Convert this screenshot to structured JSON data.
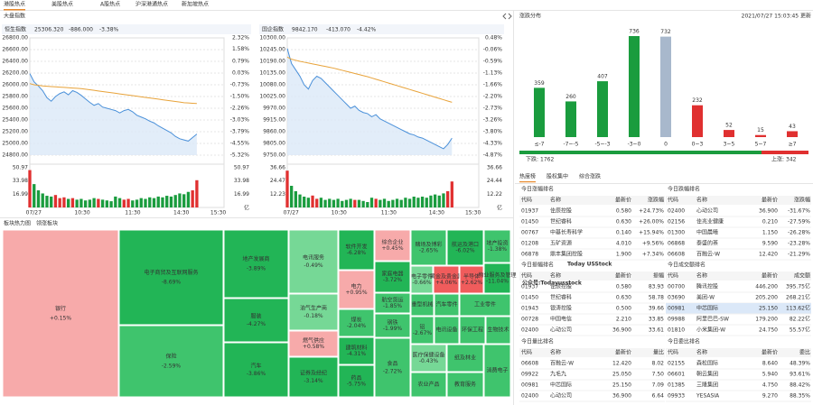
{
  "tabs": [
    "港股热点",
    "美股热点",
    "A股热点",
    "沪深港通热点",
    "新加坡热点"
  ],
  "active_tab": 0,
  "market": {
    "title": "大盘指数",
    "xlabels": [
      "07/27",
      "10:30",
      "11:30",
      "14:30",
      "15:30"
    ],
    "charts": [
      {
        "type": "line",
        "name": "恒生指数",
        "value": "25306.320",
        "change": "-886.000",
        "pct": "-3.38%",
        "line_color": "#4a90d9",
        "avg_color": "#e8a33a",
        "ylim": [
          24800,
          26800
        ],
        "yticks": [
          {
            "value": 26800,
            "label": "26800.00"
          },
          {
            "value": 26600,
            "label": "26600.00"
          },
          {
            "value": 26400,
            "label": "26400.00"
          },
          {
            "value": 26200,
            "label": "26200.00"
          },
          {
            "value": 26000,
            "label": "26000.00"
          },
          {
            "value": 25800,
            "label": "25800.00"
          },
          {
            "value": 25600,
            "label": "25600.00"
          },
          {
            "value": 25400,
            "label": "25400.00"
          },
          {
            "value": 25200,
            "label": "25200.00"
          },
          {
            "value": 25000,
            "label": "25000.00"
          },
          {
            "value": 24800,
            "label": "24800.00"
          }
        ],
        "y2lim": [
          -5.32,
          2.32
        ],
        "y2ticks": [
          {
            "value": 2.32,
            "label": "2.32%"
          },
          {
            "value": 1.58,
            "label": "1.58%"
          },
          {
            "value": 0.79,
            "label": "0.79%"
          },
          {
            "value": 0.03,
            "label": "0.03%"
          },
          {
            "value": -0.73,
            "label": "-0.73%"
          },
          {
            "value": -1.5,
            "label": "-1.50%"
          },
          {
            "value": -2.26,
            "label": "-2.26%"
          },
          {
            "value": -3.03,
            "label": "-3.03%"
          },
          {
            "value": -3.79,
            "label": "-3.79%"
          },
          {
            "value": -4.55,
            "label": "-4.55%"
          },
          {
            "value": -5.32,
            "label": "-5.32%"
          }
        ],
        "values": [
          26190,
          26050,
          25980,
          25900,
          25780,
          25720,
          25800,
          25850,
          25880,
          25830,
          25900,
          25870,
          25820,
          25760,
          25700,
          25650,
          25680,
          25620,
          25600,
          25580,
          25560,
          25520,
          25560,
          25580,
          25540,
          25480,
          25450,
          25420,
          25380,
          25350,
          25300,
          25260,
          25220,
          25180,
          25120,
          25080,
          25060,
          25040,
          25100,
          25160
        ],
        "avg": [
          26020,
          26000,
          25990,
          25980,
          25975,
          25970,
          25965,
          25960,
          25955,
          25950,
          25945,
          25940,
          25935,
          25925,
          25915,
          25905,
          25895,
          25885,
          25875,
          25865,
          25855,
          25845,
          25835,
          25825,
          25815,
          25805,
          25795,
          25785,
          25775,
          25765,
          25755,
          25745,
          25735,
          25725,
          25715,
          25705,
          25695,
          25690,
          25685,
          25680
        ],
        "volume": {
          "ylim": [
            0,
            50.97
          ],
          "yticks": [
            50.97,
            33.98,
            16.99
          ],
          "y2ticks": [
            50.97,
            33.98,
            16.99
          ],
          "unit": "亿",
          "values": [
            48,
            30,
            22,
            18,
            15,
            14,
            16,
            12,
            13,
            11,
            12,
            10,
            11,
            9,
            10,
            12,
            11,
            10,
            9,
            8,
            14,
            12,
            10,
            11,
            9,
            10,
            12,
            11,
            13,
            12,
            14,
            13,
            15,
            14,
            16,
            18,
            17,
            20,
            22,
            35
          ]
        }
      },
      {
        "type": "line",
        "name": "国企指数",
        "value": "9842.170",
        "change": "-413.070",
        "pct": "-4.42%",
        "line_color": "#4a90d9",
        "avg_color": "#e8a33a",
        "ylim": [
          9750,
          10300
        ],
        "yticks": [
          {
            "value": 10300,
            "label": "10300.00"
          },
          {
            "value": 10245,
            "label": "10245.00"
          },
          {
            "value": 10190,
            "label": "10190.00"
          },
          {
            "value": 10135,
            "label": "10135.00"
          },
          {
            "value": 10080,
            "label": "10080.00"
          },
          {
            "value": 10025,
            "label": "10025.00"
          },
          {
            "value": 9970,
            "label": "9970.00"
          },
          {
            "value": 9915,
            "label": "9915.00"
          },
          {
            "value": 9860,
            "label": "9860.00"
          },
          {
            "value": 9805,
            "label": "9805.00"
          },
          {
            "value": 9750,
            "label": "9750.00"
          }
        ],
        "y2lim": [
          -4.87,
          0.48
        ],
        "y2ticks": [
          {
            "value": 0.48,
            "label": "0.48%"
          },
          {
            "value": -0.06,
            "label": "-0.06%"
          },
          {
            "value": -0.59,
            "label": "-0.59%"
          },
          {
            "value": -1.13,
            "label": "-1.13%"
          },
          {
            "value": -1.66,
            "label": "-1.66%"
          },
          {
            "value": -2.2,
            "label": "-2.20%"
          },
          {
            "value": -2.73,
            "label": "-2.73%"
          },
          {
            "value": -3.26,
            "label": "-3.26%"
          },
          {
            "value": -3.8,
            "label": "-3.80%"
          },
          {
            "value": -4.33,
            "label": "-4.33%"
          },
          {
            "value": -4.87,
            "label": "-4.87%"
          }
        ],
        "values": [
          10250,
          10180,
          10150,
          10120,
          10080,
          10060,
          10100,
          10120,
          10110,
          10090,
          10070,
          10050,
          10030,
          10010,
          9990,
          9970,
          9980,
          9960,
          9950,
          9945,
          9930,
          9940,
          9920,
          9910,
          9900,
          9890,
          9880,
          9870,
          9860,
          9850,
          9845,
          9835,
          9830,
          9820,
          9810,
          9800,
          9790,
          9780,
          9800,
          9830
        ],
        "avg": [
          10210,
          10200,
          10195,
          10190,
          10186,
          10182,
          10178,
          10174,
          10170,
          10166,
          10162,
          10158,
          10153,
          10148,
          10143,
          10138,
          10133,
          10128,
          10123,
          10118,
          10112,
          10106,
          10100,
          10094,
          10088,
          10082,
          10076,
          10070,
          10064,
          10058,
          10052,
          10046,
          10040,
          10034,
          10028,
          10022,
          10016,
          10010,
          10004,
          9998
        ],
        "volume": {
          "ylim": [
            0,
            36.66
          ],
          "yticks": [
            36.66,
            24.47,
            12.23
          ],
          "y2ticks": [
            36.66,
            24.44,
            12.22
          ],
          "unit": "亿",
          "values": [
            34,
            20,
            15,
            12,
            10,
            9,
            11,
            8,
            9,
            7,
            8,
            7,
            8,
            6,
            7,
            8,
            7,
            7,
            6,
            5,
            9,
            8,
            7,
            8,
            6,
            7,
            8,
            7,
            9,
            8,
            10,
            9,
            10,
            9,
            11,
            12,
            11,
            13,
            15,
            24
          ]
        }
      }
    ]
  },
  "heatmap": {
    "title": "板块热力图",
    "tab": "领涨板块",
    "cells": [
      {
        "name": "银行",
        "value": 0.15,
        "label": "+0.15%"
      },
      {
        "name": "电子商贸及互联网服务",
        "value": -8.69,
        "label": "-8.69%"
      },
      {
        "name": "保险",
        "value": -2.59,
        "label": "-2.59%"
      },
      {
        "name": "地产发展商",
        "value": -3.89,
        "label": "-3.89%"
      },
      {
        "name": "服装",
        "value": -4.27,
        "label": "-4.27%"
      },
      {
        "name": "汽车",
        "value": -3.86,
        "label": "-3.86%"
      },
      {
        "name": "电讯服务",
        "value": -0.49,
        "label": "-0.49%"
      },
      {
        "name": "油气生产商",
        "value": -0.18,
        "label": "-0.18%"
      },
      {
        "name": "燃气供应",
        "value": 0.58,
        "label": "+0.58%"
      },
      {
        "name": "证券及经纪",
        "value": -3.14,
        "label": "-3.14%"
      },
      {
        "name": "软件开发",
        "value": -6.28,
        "label": "-6.28%"
      },
      {
        "name": "电力",
        "value": 0.95,
        "label": "+0.95%"
      },
      {
        "name": "煤炭",
        "value": -2.04,
        "label": "-2.04%"
      },
      {
        "name": "建筑材料",
        "value": -4.31,
        "label": "-4.31%"
      },
      {
        "name": "药品",
        "value": -5.75,
        "label": "-5.75%"
      },
      {
        "name": "综合企业",
        "value": 0.45,
        "label": "+0.45%"
      },
      {
        "name": "家庭电器",
        "value": -3.72,
        "label": "-3.72%"
      },
      {
        "name": "航空货运",
        "value": -1.85,
        "label": "-1.85%"
      },
      {
        "name": "钢铁",
        "value": -1.99,
        "label": "-1.99%"
      },
      {
        "name": "食品",
        "value": -2.72,
        "label": "-2.72%"
      },
      {
        "name": "赌场及博彩",
        "value": -2.65,
        "label": "-2.65%"
      },
      {
        "name": "电子零件",
        "value": -0.66,
        "label": "-0.66%"
      },
      {
        "name": "黄金及贵金属",
        "value": 4.06,
        "label": "+4.06%"
      },
      {
        "name": "半导体",
        "value": 2.62,
        "label": "+2.62%"
      },
      {
        "name": "航运及港口",
        "value": -6.02,
        "label": "-6.02%"
      },
      {
        "name": "地产投资",
        "value": -1.38,
        "label": "-1.38%"
      },
      {
        "name": "物业服务及管理",
        "value": -11.04,
        "label": "-11.04%"
      },
      {
        "name": "重型机械"
      },
      {
        "name": "汽车零件"
      },
      {
        "name": "工业零件"
      },
      {
        "name": "铝",
        "value": -2.67,
        "label": "-2.67%"
      },
      {
        "name": "医疗保健设备",
        "value": -0.43,
        "label": "-0.43%"
      },
      {
        "name": "农业产品"
      },
      {
        "name": "电讯设备"
      },
      {
        "name": "环保工程"
      },
      {
        "name": "生物技术"
      },
      {
        "name": "纸及林业"
      },
      {
        "name": "教育服务"
      },
      {
        "name": "消费电子"
      }
    ]
  },
  "distribution": {
    "title": "涨跌分布",
    "updated": "2021/07/27 15:03:45 更新",
    "type": "bar",
    "categories": [
      "≤-7",
      "-7~-5",
      "-5~-3",
      "-3~0",
      "0",
      "0~3",
      "3~5",
      "5~7",
      "≥7"
    ],
    "values": [
      359,
      260,
      407,
      736,
      732,
      232,
      52,
      15,
      43
    ],
    "colors": [
      "#1a9c3e",
      "#1a9c3e",
      "#1a9c3e",
      "#1a9c3e",
      "#a8b8cc",
      "#e03030",
      "#e03030",
      "#e03030",
      "#e03030"
    ],
    "down_label": "下跌:",
    "down": 1762,
    "down_color": "#1a9c3e",
    "up_label": "上涨:",
    "up": 342,
    "up_color": "#e03030"
  },
  "rank_tabs": [
    "热度榜",
    "股权集中",
    "综合涨跌"
  ],
  "rank_active": 0,
  "watermark": [
    "Today USStock",
    "公众号:Todayusstock"
  ],
  "tables": [
    {
      "title": "今日涨幅排名",
      "columns": [
        "代码",
        "名称",
        "最新价",
        "涨跌幅"
      ],
      "rows": [
        [
          "01937",
          "佳辰控股",
          "0.580",
          "+24.73%"
        ],
        [
          "01450",
          "世纪睿科",
          "0.630",
          "+26.00%"
        ],
        [
          "00767",
          "中基长寿科学",
          "0.140",
          "+15.94%"
        ],
        [
          "01208",
          "五矿资源",
          "4.010",
          "+9.56%"
        ],
        [
          "06878",
          "鼎丰集团控股",
          "1.900",
          "+7.34%"
        ]
      ]
    },
    {
      "title": "今日跌幅排名",
      "columns": [
        "代码",
        "名称",
        "最新价",
        "涨跌幅"
      ],
      "rows": [
        [
          "02400",
          "心动公司",
          "36.900",
          "-31.67%"
        ],
        [
          "02156",
          "佳兆业健康",
          "0.210",
          "-27.59%"
        ],
        [
          "01300",
          "中国晨曦",
          "1.150",
          "-26.28%"
        ],
        [
          "06868",
          "泰盛的茶",
          "9.590",
          "-23.28%"
        ],
        [
          "06608",
          "百融云-W",
          "12.420",
          "-21.29%"
        ]
      ]
    },
    {
      "title": "今日振幅排名",
      "columns": [
        "代码",
        "名称",
        "最新价",
        "振幅"
      ],
      "rows": [
        [
          "01937",
          "佳辰控股",
          "0.580",
          "83.93"
        ],
        [
          "01450",
          "世纪睿科",
          "0.630",
          "58.78"
        ],
        [
          "01943",
          "银涛控股",
          "0.500",
          "39.66"
        ],
        [
          "00728",
          "中国电信",
          "2.210",
          "33.85"
        ],
        [
          "02400",
          "心动公司",
          "36.900",
          "33.61"
        ]
      ]
    },
    {
      "title": "今日成交额排名",
      "columns": [
        "代码",
        "名称",
        "最新价",
        "成交额"
      ],
      "selected_row": 2,
      "rows": [
        [
          "00700",
          "腾讯控股",
          "446.200",
          "395.75亿"
        ],
        [
          "03690",
          "美团-W",
          "205.200",
          "268.21亿"
        ],
        [
          "00981",
          "中芯国际",
          "25.150",
          "113.62亿"
        ],
        [
          "09988",
          "阿里巴巴-SW",
          "179.200",
          "82.22亿"
        ],
        [
          "01810",
          "小米集团-W",
          "24.750",
          "55.57亿"
        ]
      ]
    },
    {
      "title": "今日量比排名",
      "columns": [
        "代码",
        "名称",
        "最新价",
        "量比"
      ],
      "rows": [
        [
          "06608",
          "百融云-W",
          "12.420",
          "8.02"
        ],
        [
          "09922",
          "九毛九",
          "25.050",
          "7.50"
        ],
        [
          "00981",
          "中芯国际",
          "25.150",
          "7.09"
        ],
        [
          "02400",
          "心动公司",
          "36.900",
          "6.64"
        ]
      ]
    },
    {
      "title": "今日委比排名",
      "columns": [
        "代码",
        "名称",
        "最新价",
        "委比"
      ],
      "rows": [
        [
          "02155",
          "森松国际",
          "8.640",
          "48.39%"
        ],
        [
          "06601",
          "朝云集团",
          "5.940",
          "93.61%"
        ],
        [
          "01385",
          "三隆集团",
          "4.750",
          "88.42%"
        ],
        [
          "09933",
          "YESASIA",
          "9.270",
          "88.35%"
        ]
      ]
    }
  ]
}
